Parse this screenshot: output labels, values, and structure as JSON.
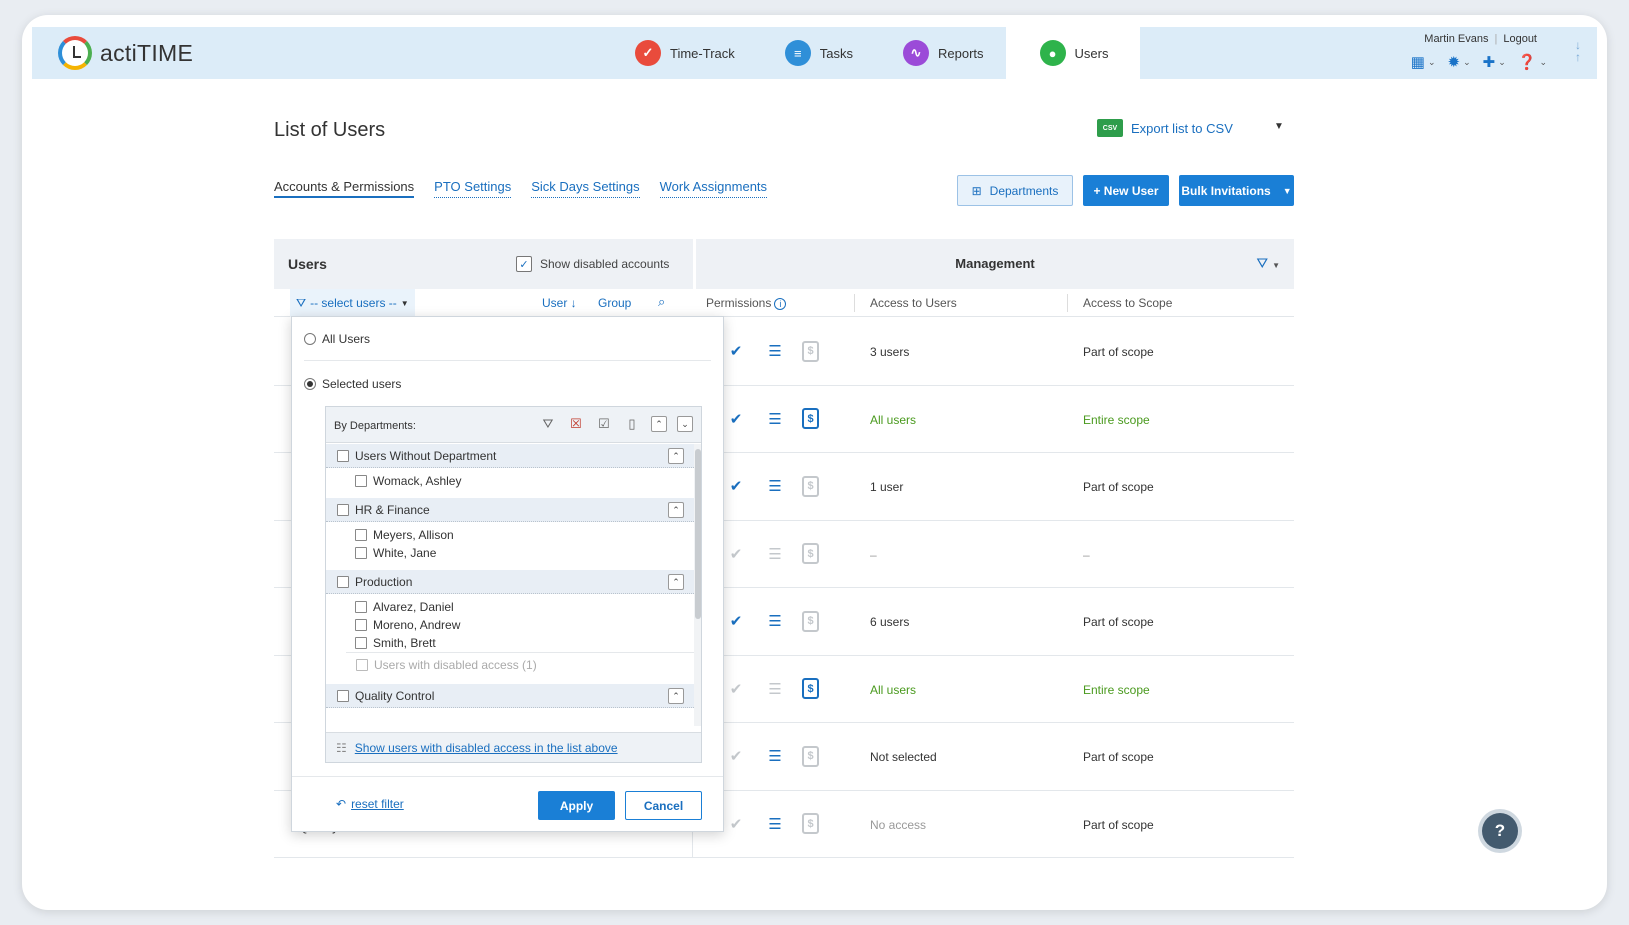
{
  "app": {
    "logo_text": "actiTIME",
    "nav": [
      {
        "label": "Time-Track",
        "icon": "time-track-icon",
        "color": "#e94b3c",
        "glyph": "✓"
      },
      {
        "label": "Tasks",
        "icon": "tasks-icon",
        "color": "#2f8fd8",
        "glyph": "≡"
      },
      {
        "label": "Reports",
        "icon": "reports-icon",
        "color": "#9b4bd8",
        "glyph": "∿"
      },
      {
        "label": "Users",
        "icon": "users-icon",
        "color": "#2eb34b",
        "glyph": "●"
      }
    ],
    "user_name": "Martin Evans",
    "logout": "Logout"
  },
  "page": {
    "title": "List of Users",
    "export_label": "Export list to CSV",
    "csv_badge": "CSV",
    "tabs": [
      "Accounts & Permissions",
      "PTO Settings",
      "Sick Days Settings",
      "Work Assignments"
    ],
    "departments_btn": "Departments",
    "new_user_btn": "+ New User",
    "bulk_btn": "Bulk Invitations"
  },
  "table": {
    "users_header": "Users",
    "show_disabled": "Show disabled accounts",
    "management_header": "Management",
    "select_users": "-- select users --",
    "sort_user": "User ↓",
    "sort_group": "Group",
    "col_permissions": "Permissions",
    "col_access_users": "Access to Users",
    "col_access_scope": "Access to Scope",
    "rows": [
      {
        "left": "",
        "icons": [
          true,
          true,
          false
        ],
        "access": "3 users",
        "scope": "Part of scope",
        "style": "normal"
      },
      {
        "left": "",
        "icons": [
          true,
          true,
          true
        ],
        "access": "All users",
        "scope": "Entire scope",
        "style": "green"
      },
      {
        "left": "",
        "icons": [
          true,
          true,
          false
        ],
        "access": "1 user",
        "scope": "Part of scope",
        "style": "normal"
      },
      {
        "left": "",
        "icons": [
          false,
          false,
          false
        ],
        "access": "–",
        "scope": "–",
        "style": "grey"
      },
      {
        "left": "",
        "icons": [
          true,
          true,
          false
        ],
        "access": "6 users",
        "scope": "Part of scope",
        "style": "normal"
      },
      {
        "left": "",
        "icons": [
          false,
          false,
          true
        ],
        "access": "All users",
        "scope": "Entire scope",
        "style": "green"
      },
      {
        "left": "",
        "icons": [
          false,
          true,
          false
        ],
        "access": "Not selected",
        "scope": "Part of scope",
        "style": "normal"
      },
      {
        "left": "Quality Control",
        "icons": [
          false,
          true,
          false
        ],
        "access": "No access",
        "scope": "Part of scope",
        "style": "grey-acc"
      }
    ]
  },
  "popup": {
    "all_users": "All Users",
    "selected_users": "Selected users",
    "by_departments": "By Departments:",
    "groups": [
      {
        "name": "Users Without Department",
        "people": [
          "Womack, Ashley"
        ]
      },
      {
        "name": "HR & Finance",
        "people": [
          "Meyers, Allison",
          "White, Jane"
        ]
      },
      {
        "name": "Production",
        "people": [
          "Alvarez, Daniel",
          "Moreno, Andrew",
          "Smith, Brett"
        ],
        "disabled": "Users with disabled access (1)"
      },
      {
        "name": "Quality Control",
        "people": []
      }
    ],
    "show_disabled_link": "Show users with disabled access in the list above",
    "reset_filter": "reset filter",
    "apply": "Apply",
    "cancel": "Cancel"
  },
  "help": "?"
}
